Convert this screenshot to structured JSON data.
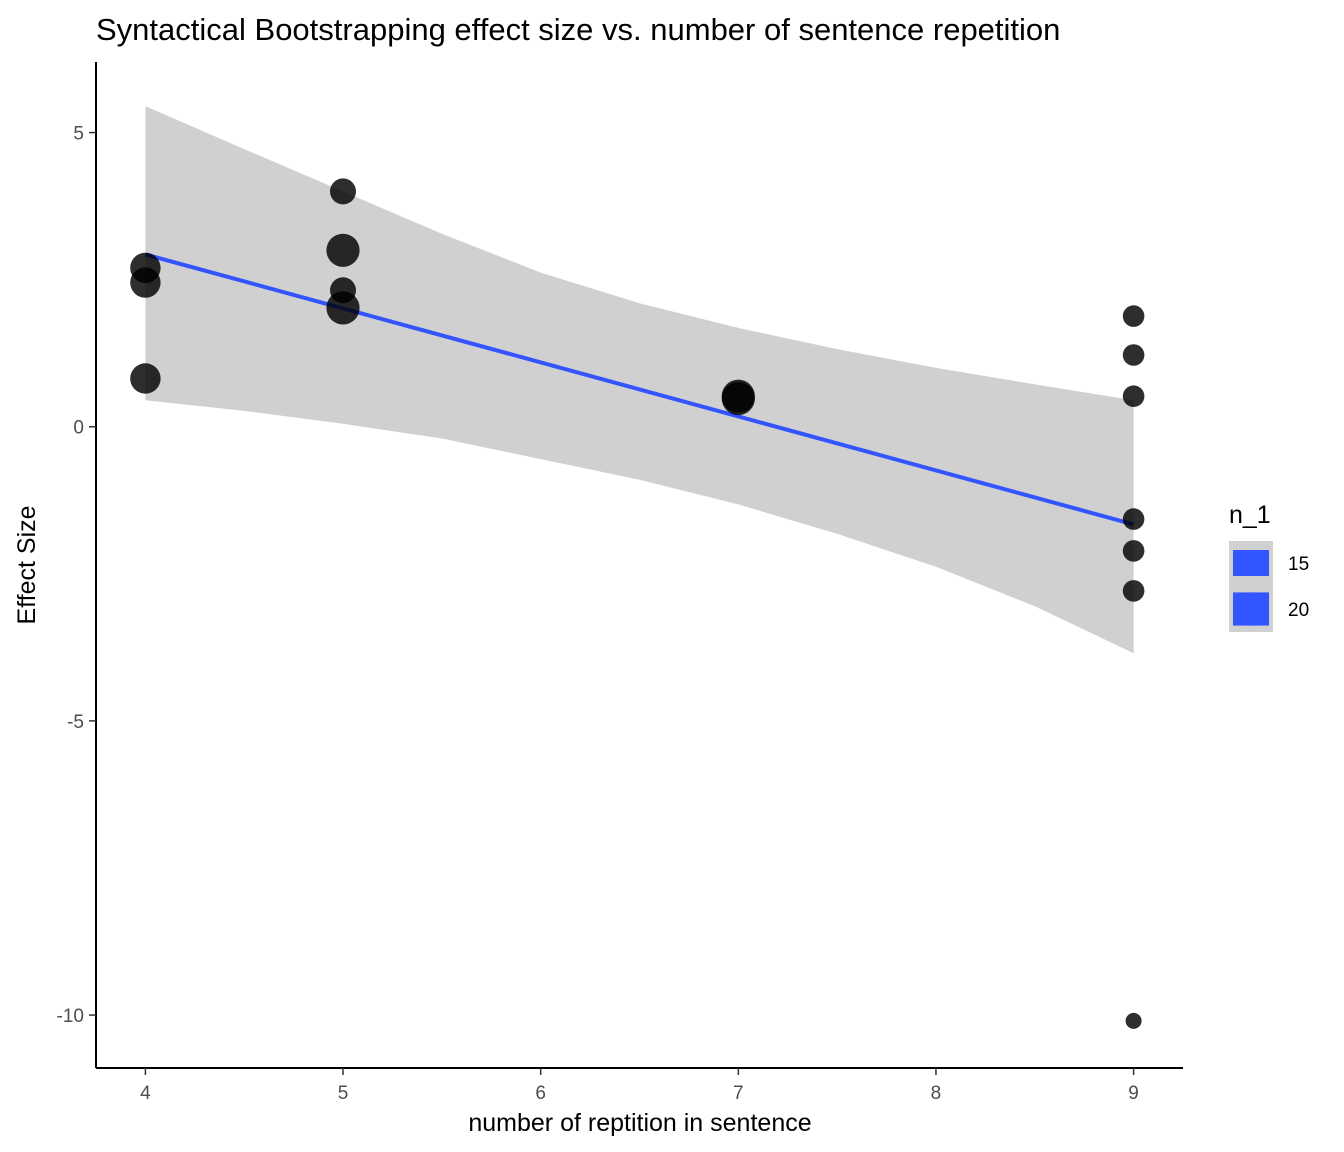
{
  "chart_data": {
    "type": "scatter",
    "title": "Syntactical Bootstrapping effect size vs. number of sentence repetition",
    "xlabel": "number of reptition in sentence",
    "ylabel": "Effect Size",
    "xlim": [
      3.75,
      9.25
    ],
    "ylim": [
      -10.9,
      6.2
    ],
    "x_ticks": [
      4,
      5,
      6,
      7,
      8,
      9
    ],
    "y_ticks": [
      5,
      0,
      -5,
      -10
    ],
    "y_tick_labels": [
      "5",
      "0",
      "-5",
      "-10"
    ],
    "grid": false,
    "points": [
      {
        "x": 4,
        "y": 2.7,
        "n_1": 18
      },
      {
        "x": 4,
        "y": 2.45,
        "n_1": 18
      },
      {
        "x": 4,
        "y": 0.82,
        "n_1": 18
      },
      {
        "x": 5,
        "y": 4.0,
        "n_1": 15
      },
      {
        "x": 5,
        "y": 3.0,
        "n_1": 20
      },
      {
        "x": 5,
        "y": 2.32,
        "n_1": 15
      },
      {
        "x": 5,
        "y": 2.02,
        "n_1": 20
      },
      {
        "x": 7,
        "y": 0.52,
        "n_1": 20
      },
      {
        "x": 7,
        "y": 0.48,
        "n_1": 20
      },
      {
        "x": 9,
        "y": 1.88,
        "n_1": 12
      },
      {
        "x": 9,
        "y": 1.22,
        "n_1": 12
      },
      {
        "x": 9,
        "y": 0.52,
        "n_1": 12
      },
      {
        "x": 9,
        "y": -1.57,
        "n_1": 12
      },
      {
        "x": 9,
        "y": -2.11,
        "n_1": 12
      },
      {
        "x": 9,
        "y": -2.79,
        "n_1": 12
      },
      {
        "x": 9,
        "y": -10.1,
        "n_1": 8
      }
    ],
    "fit_line": {
      "x": [
        4,
        9
      ],
      "y": [
        2.93,
        -1.66
      ],
      "color": "#3355ff"
    },
    "confidence_band": {
      "x": [
        4,
        4.5,
        5,
        5.5,
        6,
        6.5,
        7,
        7.5,
        8,
        8.5,
        9
      ],
      "upper": [
        5.45,
        4.72,
        4.0,
        3.28,
        2.62,
        2.1,
        1.68,
        1.32,
        1.0,
        0.72,
        0.45
      ],
      "lower": [
        0.45,
        0.27,
        0.05,
        -0.2,
        -0.55,
        -0.9,
        -1.32,
        -1.82,
        -2.38,
        -3.05,
        -3.85
      ],
      "color": "#d0d0d0"
    },
    "point_color": "#000000",
    "legend": {
      "title": "n_1",
      "position": "right",
      "entries": [
        {
          "label": "15",
          "n_1": 15
        },
        {
          "label": "20",
          "n_1": 20
        }
      ]
    }
  }
}
